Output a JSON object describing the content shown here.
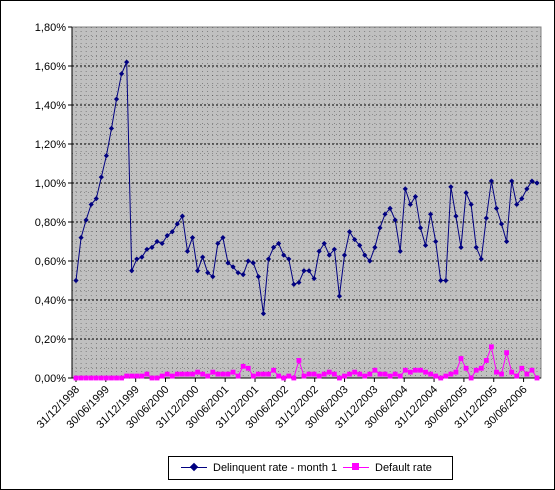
{
  "chart_data": {
    "type": "line",
    "title": "",
    "xlabel": "",
    "ylabel": "",
    "ylim": [
      0,
      1.8
    ],
    "y_tick_labels": [
      "0,00%",
      "0,20%",
      "0,40%",
      "0,60%",
      "0,80%",
      "1,00%",
      "1,20%",
      "1,40%",
      "1,60%",
      "1,80%"
    ],
    "x_tick_labels": [
      "31/12/1998",
      "30/06/1999",
      "31/12/1999",
      "30/06/2000",
      "31/12/2000",
      "30/06/2001",
      "31/12/2001",
      "30/06/2002",
      "31/12/2002",
      "30/06/2003",
      "31/12/2003",
      "30/06/2004",
      "31/12/2004",
      "30/06/2005",
      "31/12/2005",
      "30/06/2006"
    ],
    "grid": true,
    "legend_position": "bottom",
    "plot_background": "#c0c0c0",
    "series": [
      {
        "name": "Delinquent rate - month 1",
        "color": "#000080",
        "marker": "diamond",
        "values": [
          0.5,
          0.72,
          0.81,
          0.89,
          0.92,
          1.03,
          1.14,
          1.28,
          1.43,
          1.56,
          1.62,
          0.55,
          0.61,
          0.62,
          0.66,
          0.67,
          0.7,
          0.69,
          0.73,
          0.75,
          0.79,
          0.83,
          0.65,
          0.72,
          0.55,
          0.62,
          0.54,
          0.52,
          0.69,
          0.72,
          0.59,
          0.57,
          0.54,
          0.53,
          0.6,
          0.59,
          0.52,
          0.33,
          0.61,
          0.67,
          0.69,
          0.63,
          0.61,
          0.48,
          0.49,
          0.55,
          0.55,
          0.51,
          0.65,
          0.69,
          0.63,
          0.66,
          0.42,
          0.63,
          0.75,
          0.71,
          0.68,
          0.63,
          0.6,
          0.67,
          0.77,
          0.84,
          0.87,
          0.81,
          0.65,
          0.97,
          0.89,
          0.93,
          0.77,
          0.68,
          0.84,
          0.7,
          0.5,
          0.5,
          0.98,
          0.83,
          0.67,
          0.95,
          0.89,
          0.67,
          0.61,
          0.82,
          1.01,
          0.87,
          0.79,
          0.7,
          1.01,
          0.89,
          0.92,
          0.97,
          1.01,
          1.0
        ]
      },
      {
        "name": "Default rate",
        "color": "#ff00ff",
        "marker": "square",
        "values": [
          0.0,
          0.0,
          0.0,
          0.0,
          0.0,
          0.0,
          0.0,
          0.0,
          0.0,
          0.0,
          0.01,
          0.01,
          0.01,
          0.01,
          0.02,
          0.0,
          0.0,
          0.01,
          0.02,
          0.01,
          0.02,
          0.02,
          0.02,
          0.02,
          0.03,
          0.02,
          0.01,
          0.03,
          0.02,
          0.02,
          0.02,
          0.03,
          0.01,
          0.06,
          0.05,
          0.01,
          0.02,
          0.02,
          0.02,
          0.04,
          0.01,
          0.0,
          0.01,
          0.0,
          0.09,
          0.01,
          0.02,
          0.02,
          0.01,
          0.02,
          0.03,
          0.02,
          0.0,
          0.01,
          0.02,
          0.03,
          0.02,
          0.01,
          0.02,
          0.04,
          0.02,
          0.02,
          0.01,
          0.02,
          0.01,
          0.04,
          0.03,
          0.04,
          0.04,
          0.03,
          0.02,
          0.01,
          0.0,
          0.01,
          0.02,
          0.03,
          0.1,
          0.05,
          0.0,
          0.04,
          0.05,
          0.09,
          0.16,
          0.03,
          0.02,
          0.13,
          0.03,
          0.01,
          0.05,
          0.02,
          0.04,
          0.0
        ]
      }
    ]
  }
}
